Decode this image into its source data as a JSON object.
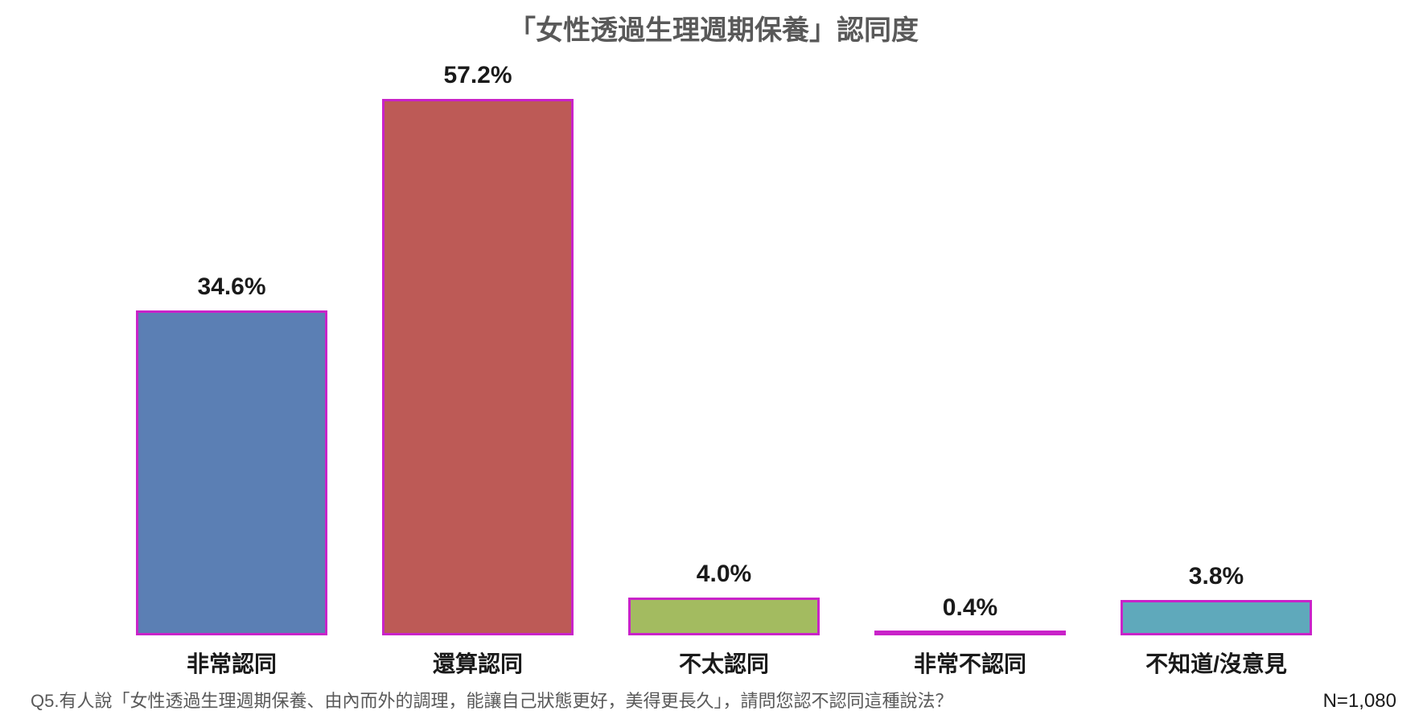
{
  "chart": {
    "type": "bar",
    "title": "「女性透過生理週期保養」認同度",
    "title_fontsize": 34,
    "title_color": "#595959",
    "title_fontweight": "700",
    "background_color": "#ffffff",
    "categories": [
      "非常認同",
      "還算認同",
      "不太認同",
      "非常不認同",
      "不知道/沒意見"
    ],
    "values": [
      34.6,
      57.2,
      4.0,
      0.4,
      3.8
    ],
    "value_labels": [
      "34.6%",
      "57.2%",
      "4.0%",
      "0.4%",
      "3.8%"
    ],
    "bar_fill_colors": [
      "#5b7fb4",
      "#bd5a56",
      "#a3bb60",
      "#8765a4",
      "#5fa9bb"
    ],
    "bar_border_color": "#c923c9",
    "bar_border_width": 3,
    "value_label_fontsize": 30,
    "value_label_color": "#1a1a1a",
    "value_label_fontweight": "700",
    "category_label_fontsize": 28,
    "category_label_color": "#1a1a1a",
    "category_label_fontweight": "700",
    "ylim": [
      0,
      60
    ],
    "bar_width_ratio": 0.78,
    "plot_area_height": 700,
    "grid": false
  },
  "footer": {
    "question": "Q5.有人說「女性透過生理週期保養、由內而外的調理，能讓自己狀態更好，美得更長久」，請問您認不認同這種說法？",
    "question_fontsize": 22,
    "question_color": "#595959",
    "sample_size": "N=1,080",
    "sample_size_fontsize": 24,
    "sample_size_color": "#1a1a1a"
  }
}
